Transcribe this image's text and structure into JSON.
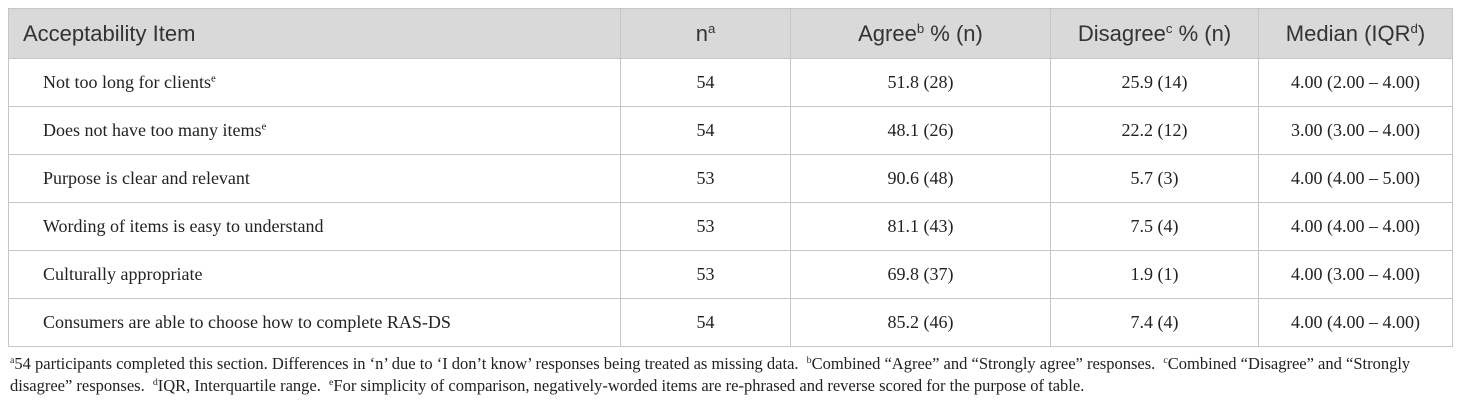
{
  "table": {
    "header": [
      {
        "text": "Acceptability Item"
      },
      {
        "text": "n",
        "sup": "a"
      },
      {
        "text": "Agree",
        "sup": "b",
        "suffix": " % (n)"
      },
      {
        "text": "Disagree",
        "sup": "c",
        "suffix": " % (n)"
      },
      {
        "text": "Median (IQR",
        "sup": "d",
        "suffix": ")"
      }
    ],
    "rows": [
      {
        "item": {
          "text": "Not too long for clients",
          "sup": "e"
        },
        "n": 54,
        "agree": "51.8 (28)",
        "disagree": "25.9 (14)",
        "median": "4.00 (2.00 – 4.00)"
      },
      {
        "item": {
          "text": "Does not have too many items",
          "sup": "e"
        },
        "n": 54,
        "agree": "48.1 (26)",
        "disagree": "22.2 (12)",
        "median": "3.00 (3.00 – 4.00)"
      },
      {
        "item": {
          "text": "Purpose is clear and relevant"
        },
        "n": 53,
        "agree": "90.6 (48)",
        "disagree": "5.7 (3)",
        "median": "4.00 (4.00 – 5.00)"
      },
      {
        "item": {
          "text": "Wording of items is easy to understand"
        },
        "n": 53,
        "agree": "81.1 (43)",
        "disagree": "7.5 (4)",
        "median": "4.00 (4.00 – 4.00)"
      },
      {
        "item": {
          "text": "Culturally appropriate"
        },
        "n": 53,
        "agree": "69.8 (37)",
        "disagree": "1.9 (1)",
        "median": "4.00 (3.00 – 4.00)"
      },
      {
        "item": {
          "text": "Consumers are able to choose how to complete RAS-DS"
        },
        "n": 54,
        "agree": "85.2 (46)",
        "disagree": "7.4 (4)",
        "median": "4.00 (4.00 – 4.00)"
      }
    ],
    "footnotes": [
      {
        "sup": "a",
        "text": "54 participants completed this section. Differences in ‘n’ due to ‘I don’t know’ responses being treated as missing data."
      },
      {
        "sup": "b",
        "text": "Combined “Agree” and “Strongly agree” responses."
      },
      {
        "sup": "c",
        "text": "Combined “Disagree” and “Strongly disagree” responses."
      },
      {
        "sup": "d",
        "text": "IQR, Interquartile range."
      },
      {
        "sup": "e",
        "text": "For simplicity of comparison, negatively-worded items are re-phrased and reverse scored for the purpose of table."
      }
    ]
  }
}
